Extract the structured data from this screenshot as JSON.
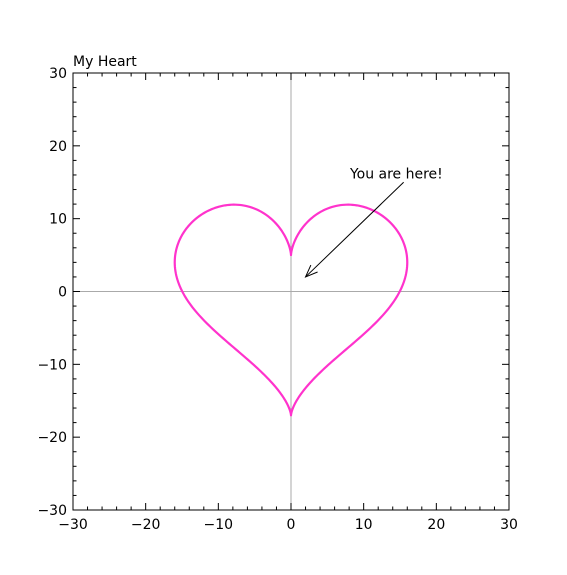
{
  "chart_data": {
    "type": "line",
    "title": "My Heart",
    "xlabel": "",
    "ylabel": "",
    "xlim": [
      -30,
      30
    ],
    "ylim": [
      -30,
      30
    ],
    "xticks": [
      -30,
      -20,
      -10,
      0,
      10,
      20,
      30
    ],
    "yticks": [
      -30,
      -20,
      -10,
      0,
      10,
      20,
      30
    ],
    "xtick_labels": [
      "−30",
      "−20",
      "−10",
      "0",
      "10",
      "20",
      "30"
    ],
    "ytick_labels": [
      "−30",
      "−20",
      "−10",
      "0",
      "10",
      "20",
      "30"
    ],
    "reference_lines": {
      "x": 0,
      "y": 0,
      "color": "#aaaaaa"
    },
    "grid": false,
    "series": [
      {
        "color": "#ff33cc",
        "curve": "heart",
        "x": [
          0,
          1.7,
          6.0,
          11.0,
          14.6,
          16.0,
          15.3,
          12.9,
          9.7,
          6.4,
          3.7,
          1.5,
          0,
          -1.5,
          -3.7,
          -6.4,
          -9.7,
          -12.9,
          -15.3,
          -16.0,
          -14.6,
          -11.0,
          -6.0,
          -1.7,
          0
        ],
        "y": [
          5.0,
          8.2,
          11.2,
          11.6,
          8.6,
          3.8,
          -1.4,
          -5.5,
          -8.3,
          -10.5,
          -12.7,
          -14.9,
          -17.0,
          -14.9,
          -12.7,
          -10.5,
          -8.3,
          -5.5,
          -1.4,
          3.8,
          8.6,
          11.6,
          11.2,
          8.2,
          5.0
        ]
      }
    ],
    "annotations": [
      {
        "text": "You are here!",
        "text_at": [
          14.5,
          15.5
        ],
        "arrow_from": [
          15.5,
          15.0
        ],
        "arrow_to": [
          2.0,
          2.0
        ]
      }
    ]
  }
}
